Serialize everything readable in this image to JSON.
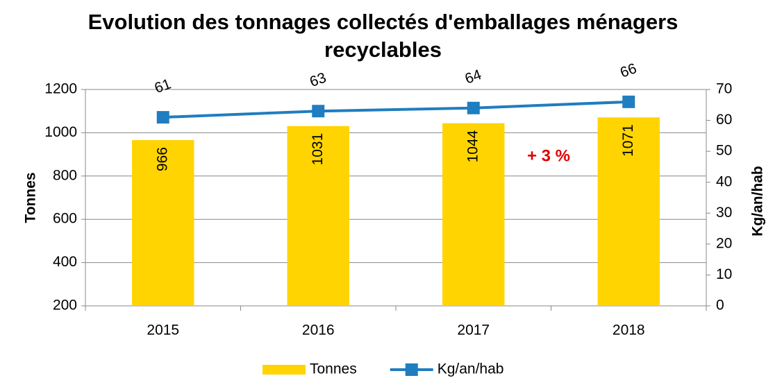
{
  "chart_data": {
    "type": "bar",
    "title": "Evolution des tonnages collectés d'emballages ménagers recyclables",
    "annotation": "+ 3 %",
    "y_label": "Tonnes",
    "y2_label": "Kg/an/hab",
    "categories": [
      "2015",
      "2016",
      "2017",
      "2018"
    ],
    "series": [
      {
        "name": "Tonnes",
        "type": "bar",
        "color": "#FFD400",
        "values": [
          966,
          1031,
          1044,
          1071
        ]
      },
      {
        "name": "Kg/an/hab",
        "type": "line",
        "axis": "y2",
        "color": "#1F7DC0",
        "values": [
          61,
          63,
          64,
          66
        ]
      }
    ],
    "ylim": [
      200,
      1200
    ],
    "yticks": [
      200,
      400,
      600,
      800,
      1000,
      1200
    ],
    "y2lim": [
      0,
      70
    ],
    "y2ticks": [
      0,
      10,
      20,
      30,
      40,
      50,
      60,
      70
    ],
    "grid": true,
    "legend": "bottom"
  }
}
